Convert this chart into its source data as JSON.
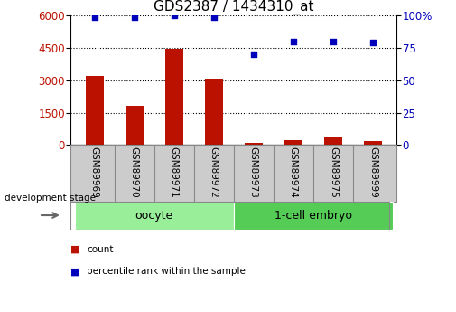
{
  "title": "GDS2387 / 1434310_at",
  "samples": [
    "GSM89969",
    "GSM89970",
    "GSM89971",
    "GSM89972",
    "GSM89973",
    "GSM89974",
    "GSM89975",
    "GSM89999"
  ],
  "counts": [
    3220,
    1800,
    4480,
    3060,
    95,
    240,
    340,
    195
  ],
  "percentiles": [
    99,
    99,
    100,
    99,
    70,
    80,
    80,
    79
  ],
  "bar_color": "#bb1100",
  "scatter_color": "#0000bb",
  "ylim_left": [
    0,
    6000
  ],
  "ylim_right": [
    0,
    100
  ],
  "yticks_left": [
    0,
    1500,
    3000,
    4500,
    6000
  ],
  "yticks_right": [
    0,
    25,
    50,
    75,
    100
  ],
  "groups": [
    {
      "label": "oocyte",
      "start": 0,
      "end": 4,
      "color": "#99ee99"
    },
    {
      "label": "1-cell embryo",
      "start": 4,
      "end": 8,
      "color": "#55cc55"
    }
  ],
  "tick_area_color": "#cccccc",
  "tick_border_color": "#888888",
  "legend_count_color": "#bb1100",
  "legend_pct_color": "#0000bb",
  "background_color": "#ffffff",
  "title_fontsize": 11,
  "tick_label_fontsize": 7.5,
  "axis_label_fontsize": 8.5
}
